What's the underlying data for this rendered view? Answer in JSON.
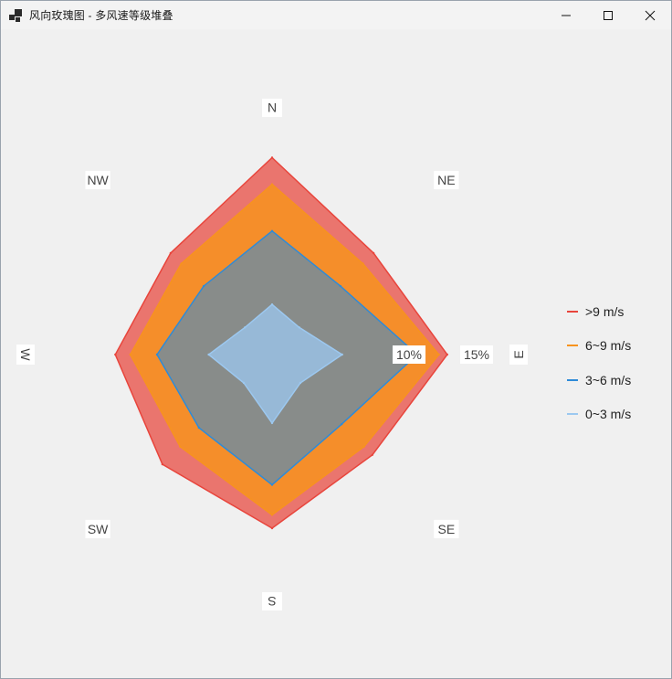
{
  "window": {
    "title": "风向玫瑰图 - 多风速等级堆叠",
    "icon": "app-window-icon",
    "buttons": [
      "minimize-icon",
      "maximize-icon",
      "close-icon"
    ]
  },
  "chart_data": {
    "type": "radar",
    "title": "",
    "directions": [
      "N",
      "NE",
      "E",
      "SE",
      "S",
      "SW",
      "W",
      "NW"
    ],
    "radial_tick_labels": [
      "10%",
      "15%"
    ],
    "radial_max": 15,
    "series": [
      {
        "name": ">9 m/s",
        "color": "#e8453c",
        "values": [
          11.8,
          8.6,
          10.5,
          8.5,
          10.4,
          9.3,
          9.4,
          8.6
        ]
      },
      {
        "name": "6~9 m/s",
        "color": "#f7931e",
        "values": [
          10.2,
          7.7,
          10.0,
          7.8,
          9.6,
          7.8,
          8.5,
          7.7
        ]
      },
      {
        "name": "3~6 m/s",
        "color": "#2e8bd8",
        "values": [
          7.4,
          5.8,
          8.7,
          5.9,
          7.8,
          6.2,
          6.9,
          5.8
        ]
      },
      {
        "name": "0~3 m/s",
        "color": "#9cc8f0",
        "values": [
          3.0,
          2.3,
          4.2,
          2.4,
          4.1,
          2.4,
          3.8,
          2.3
        ]
      }
    ]
  }
}
